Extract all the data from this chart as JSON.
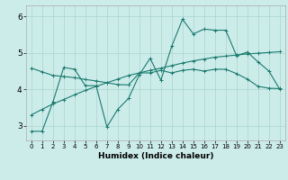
{
  "xlabel": "Humidex (Indice chaleur)",
  "background_color": "#ccecea",
  "grid_color": "#aad4d0",
  "line_color": "#1a7a6e",
  "xlim": [
    -0.5,
    23.5
  ],
  "ylim": [
    2.6,
    6.3
  ],
  "yticks": [
    3,
    4,
    5,
    6
  ],
  "xticks": [
    0,
    1,
    2,
    3,
    4,
    5,
    6,
    7,
    8,
    9,
    10,
    11,
    12,
    13,
    14,
    15,
    16,
    17,
    18,
    19,
    20,
    21,
    22,
    23
  ],
  "line1_x": [
    0,
    1,
    2,
    3,
    4,
    5,
    6,
    7,
    8,
    9,
    10,
    11,
    12,
    13,
    14,
    15,
    16,
    17,
    18,
    19,
    20,
    21,
    22,
    23
  ],
  "line1_y": [
    2.85,
    2.85,
    3.65,
    4.6,
    4.55,
    4.1,
    4.1,
    2.97,
    3.45,
    3.75,
    4.4,
    4.85,
    4.25,
    5.18,
    5.92,
    5.52,
    5.65,
    5.62,
    5.62,
    4.92,
    5.02,
    4.75,
    4.5,
    4.0
  ],
  "line2_x": [
    0,
    1,
    2,
    3,
    4,
    5,
    6,
    7,
    8,
    9,
    10,
    11,
    12,
    13,
    14,
    15,
    16,
    17,
    18,
    19,
    20,
    21,
    22,
    23
  ],
  "line2_y": [
    3.3,
    3.45,
    3.6,
    3.72,
    3.85,
    3.97,
    4.08,
    4.18,
    4.28,
    4.38,
    4.45,
    4.52,
    4.58,
    4.65,
    4.72,
    4.78,
    4.83,
    4.88,
    4.91,
    4.94,
    4.97,
    4.99,
    5.01,
    5.03
  ],
  "line3_x": [
    0,
    1,
    2,
    3,
    4,
    5,
    6,
    7,
    8,
    9,
    10,
    11,
    12,
    13,
    14,
    15,
    16,
    17,
    18,
    19,
    20,
    21,
    22,
    23
  ],
  "line3_y": [
    4.58,
    4.48,
    4.38,
    4.35,
    4.32,
    4.27,
    4.23,
    4.18,
    4.13,
    4.12,
    4.45,
    4.45,
    4.52,
    4.45,
    4.52,
    4.55,
    4.5,
    4.55,
    4.55,
    4.43,
    4.28,
    4.08,
    4.03,
    4.02
  ]
}
